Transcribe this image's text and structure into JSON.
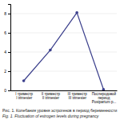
{
  "chart_data": {
    "type": "line",
    "title": "Рис. 1. Колебания уровня эстрогенов в период беременности",
    "subtitle": "Fig. 1. Fluctuation of estrogen levels during pregnancy",
    "categories": [
      "I триместр\nI trimester",
      "II триместр\nII trimester",
      "III триместр\nIII trimester",
      "Послеродовой\nпериод\nPostpartum p..."
    ],
    "values": [
      1.0,
      4.2,
      8.1,
      0.1
    ],
    "color": "#3b3f8c",
    "marker": "circle",
    "ylim": [
      0,
      9
    ],
    "yticks": [
      0,
      2,
      4,
      6,
      8
    ],
    "grid": true
  }
}
